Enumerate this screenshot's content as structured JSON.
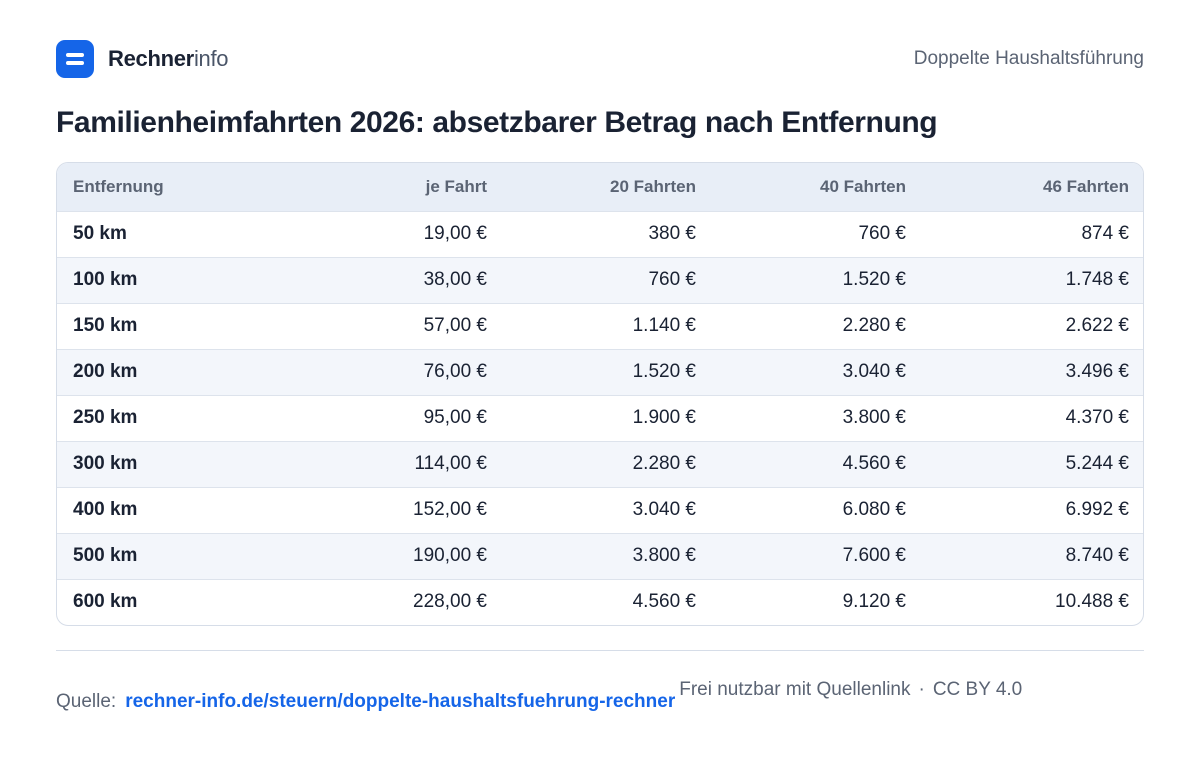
{
  "brand": {
    "name_strong": "Rechner",
    "name_light": "info"
  },
  "header": {
    "topic": "Doppelte Haushaltsführung"
  },
  "title": "Familienheimfahrten 2026: absetzbarer Betrag nach Entfernung",
  "table": {
    "columns": [
      "Entfernung",
      "je Fahrt",
      "20 Fahrten",
      "40 Fahrten",
      "46 Fahrten"
    ],
    "rows": [
      [
        "50 km",
        "19,00 €",
        "380 €",
        "760 €",
        "874 €"
      ],
      [
        "100 km",
        "38,00 €",
        "760 €",
        "1.520 €",
        "1.748 €"
      ],
      [
        "150 km",
        "57,00 €",
        "1.140 €",
        "2.280 €",
        "2.622 €"
      ],
      [
        "200 km",
        "76,00 €",
        "1.520 €",
        "3.040 €",
        "3.496 €"
      ],
      [
        "250 km",
        "95,00 €",
        "1.900 €",
        "3.800 €",
        "4.370 €"
      ],
      [
        "300 km",
        "114,00 €",
        "2.280 €",
        "4.560 €",
        "5.244 €"
      ],
      [
        "400 km",
        "152,00 €",
        "3.040 €",
        "6.080 €",
        "6.992 €"
      ],
      [
        "500 km",
        "190,00 €",
        "3.800 €",
        "7.600 €",
        "8.740 €"
      ],
      [
        "600 km",
        "228,00 €",
        "4.560 €",
        "9.120 €",
        "10.488 €"
      ]
    ]
  },
  "footer": {
    "source_label": "Quelle:",
    "source_link": "rechner-info.de/steuern/doppelte-haushaltsfuehrung-rechner",
    "license_text": "Frei nutzbar mit Quellenlink",
    "license_sep": "·",
    "license_name": "CC BY 4.0"
  },
  "colors": {
    "accent": "#1565e8",
    "header_bg": "#e8eef7",
    "stripe_bg": "#f3f6fb",
    "text": "#1a2233",
    "muted": "#5b6474"
  },
  "icons": {
    "logo": "calculator-equals-icon"
  }
}
